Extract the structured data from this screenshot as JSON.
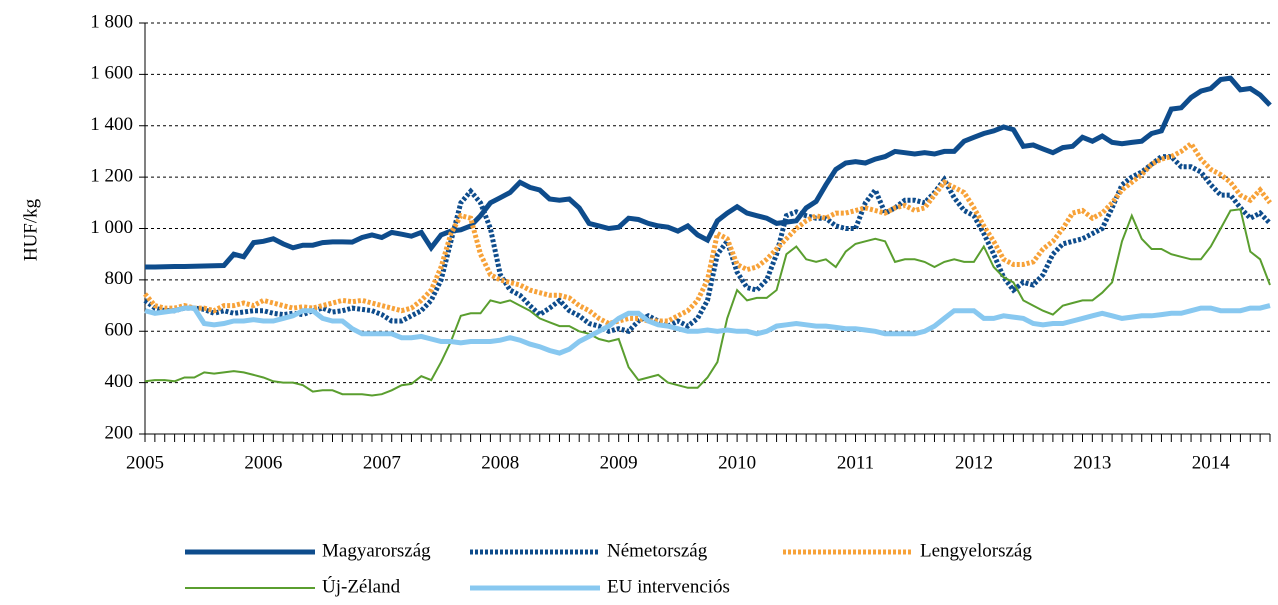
{
  "chart_data": {
    "type": "line",
    "y_label": "HUF/kg",
    "categories": [
      "2005",
      null,
      null,
      null,
      null,
      null,
      null,
      null,
      null,
      null,
      null,
      null,
      "2006",
      null,
      null,
      null,
      null,
      null,
      null,
      null,
      null,
      null,
      null,
      null,
      "2007",
      null,
      null,
      null,
      null,
      null,
      null,
      null,
      null,
      null,
      null,
      null,
      "2008",
      null,
      null,
      null,
      null,
      null,
      null,
      null,
      null,
      null,
      null,
      null,
      "2009",
      null,
      null,
      null,
      null,
      null,
      null,
      null,
      null,
      null,
      null,
      null,
      "2010",
      null,
      null,
      null,
      null,
      null,
      null,
      null,
      null,
      null,
      null,
      null,
      "2011",
      null,
      null,
      null,
      null,
      null,
      null,
      null,
      null,
      null,
      null,
      null,
      "2012",
      null,
      null,
      null,
      null,
      null,
      null,
      null,
      null,
      null,
      null,
      null,
      "2013",
      null,
      null,
      null,
      null,
      null,
      null,
      null,
      null,
      null,
      null,
      null,
      "2014",
      null,
      null,
      null,
      null,
      null,
      null
    ],
    "ylim": [
      200,
      1800
    ],
    "yticks": [
      200,
      400,
      600,
      800,
      {
        "value": 1000,
        "label": "1 000"
      },
      {
        "value": 1200,
        "label": "1 200"
      },
      {
        "value": 1400,
        "label": "1 400"
      },
      {
        "value": 1600,
        "label": "1 600"
      },
      {
        "value": 1800,
        "label": "1 800"
      }
    ],
    "grid": true,
    "legend": "bottom",
    "series": [
      {
        "name": "Magyarország",
        "color": "#0e4c8c",
        "style": "solid",
        "width": 5,
        "values": [
          850,
          850,
          851,
          852,
          852,
          853,
          854,
          855,
          856,
          900,
          890,
          945,
          950,
          960,
          940,
          925,
          935,
          935,
          945,
          948,
          948,
          947,
          965,
          975,
          965,
          985,
          978,
          970,
          985,
          925,
          975,
          990,
          995,
          1010,
          1050,
          1100,
          1120,
          1140,
          1180,
          1160,
          1150,
          1115,
          1110,
          1115,
          1080,
          1020,
          1010,
          1000,
          1005,
          1040,
          1035,
          1020,
          1010,
          1005,
          990,
          1010,
          975,
          955,
          1030,
          1060,
          1085,
          1060,
          1050,
          1040,
          1020,
          1025,
          1030,
          1080,
          1105,
          1170,
          1230,
          1255,
          1260,
          1255,
          1270,
          1280,
          1300,
          1295,
          1290,
          1295,
          1290,
          1300,
          1300,
          1340,
          1355,
          1370,
          1380,
          1395,
          1385,
          1320,
          1325,
          1310,
          1295,
          1315,
          1320,
          1355,
          1340,
          1360,
          1335,
          1330,
          1335,
          1340,
          1370,
          1380,
          1465,
          1470,
          1510,
          1535,
          1545,
          1580,
          1585,
          1540,
          1545,
          1520,
          1480
        ]
      },
      {
        "name": "Németország",
        "color": "#0e4c8c",
        "style": "dotted",
        "width": 5,
        "values": [
          720,
          690,
          680,
          680,
          690,
          690,
          685,
          670,
          680,
          670,
          675,
          680,
          680,
          670,
          665,
          670,
          665,
          680,
          690,
          675,
          680,
          690,
          685,
          680,
          665,
          640,
          640,
          660,
          680,
          720,
          800,
          950,
          1100,
          1145,
          1100,
          1000,
          820,
          760,
          740,
          700,
          665,
          690,
          720,
          680,
          660,
          630,
          620,
          600,
          610,
          600,
          640,
          660,
          640,
          620,
          640,
          620,
          650,
          720,
          900,
          950,
          830,
          770,
          760,
          800,
          900,
          1050,
          1065,
          1050,
          1040,
          1040,
          1010,
          1000,
          1000,
          1100,
          1150,
          1060,
          1080,
          1110,
          1110,
          1100,
          1140,
          1190,
          1120,
          1070,
          1050,
          980,
          900,
          810,
          760,
          790,
          780,
          820,
          900,
          940,
          950,
          960,
          980,
          1000,
          1080,
          1170,
          1200,
          1220,
          1250,
          1280,
          1280,
          1240,
          1240,
          1220,
          1170,
          1130,
          1130,
          1080,
          1040,
          1060,
          1020
        ]
      },
      {
        "name": "Lengyelország",
        "color": "#f7a239",
        "style": "dotted",
        "width": 5,
        "values": [
          745,
          700,
          690,
          690,
          700,
          690,
          690,
          680,
          700,
          700,
          710,
          700,
          720,
          710,
          700,
          690,
          695,
          690,
          700,
          710,
          720,
          715,
          720,
          710,
          700,
          690,
          680,
          690,
          720,
          760,
          850,
          980,
          1050,
          1040,
          900,
          820,
          800,
          790,
          780,
          760,
          750,
          740,
          740,
          730,
          700,
          680,
          650,
          630,
          640,
          650,
          650,
          640,
          640,
          640,
          660,
          680,
          720,
          800,
          980,
          960,
          860,
          840,
          850,
          880,
          920,
          960,
          1000,
          1030,
          1050,
          1040,
          1060,
          1060,
          1070,
          1080,
          1070,
          1060,
          1080,
          1090,
          1070,
          1080,
          1130,
          1180,
          1160,
          1140,
          1080,
          1010,
          950,
          880,
          860,
          860,
          870,
          920,
          950,
          1000,
          1060,
          1070,
          1040,
          1060,
          1100,
          1150,
          1180,
          1210,
          1250,
          1270,
          1280,
          1300,
          1330,
          1270,
          1230,
          1210,
          1180,
          1130,
          1110,
          1150,
          1100
        ]
      },
      {
        "name": "Új-Zéland",
        "color": "#5a9e2f",
        "style": "solid",
        "width": 2,
        "values": [
          405,
          410,
          410,
          405,
          420,
          420,
          440,
          435,
          440,
          445,
          440,
          430,
          420,
          405,
          400,
          400,
          390,
          365,
          370,
          370,
          355,
          355,
          355,
          350,
          355,
          370,
          390,
          395,
          425,
          410,
          480,
          560,
          660,
          670,
          670,
          720,
          710,
          720,
          700,
          680,
          650,
          635,
          620,
          620,
          600,
          590,
          570,
          560,
          570,
          460,
          410,
          420,
          430,
          400,
          390,
          380,
          380,
          420,
          480,
          650,
          760,
          720,
          730,
          730,
          760,
          900,
          930,
          880,
          870,
          880,
          850,
          910,
          940,
          950,
          960,
          950,
          870,
          880,
          880,
          870,
          850,
          870,
          880,
          870,
          870,
          930,
          850,
          810,
          790,
          720,
          700,
          680,
          665,
          700,
          710,
          720,
          720,
          750,
          790,
          950,
          1050,
          960,
          920,
          920,
          900,
          890,
          880,
          880,
          930,
          1000,
          1070,
          1075,
          910,
          880,
          780
        ]
      },
      {
        "name": "EU intervenciós",
        "color": "#88c8f0",
        "style": "solid",
        "width": 5,
        "values": [
          680,
          670,
          675,
          680,
          690,
          690,
          630,
          625,
          630,
          640,
          640,
          645,
          640,
          640,
          650,
          660,
          680,
          680,
          650,
          640,
          640,
          610,
          590,
          590,
          590,
          590,
          575,
          575,
          580,
          570,
          560,
          560,
          555,
          560,
          560,
          560,
          565,
          575,
          565,
          550,
          540,
          525,
          515,
          530,
          560,
          580,
          600,
          620,
          650,
          670,
          670,
          640,
          625,
          620,
          610,
          600,
          600,
          605,
          600,
          605,
          600,
          600,
          590,
          600,
          620,
          625,
          630,
          625,
          620,
          620,
          615,
          610,
          610,
          605,
          600,
          590,
          590,
          590,
          590,
          600,
          620,
          650,
          680,
          680,
          680,
          650,
          650,
          660,
          655,
          650,
          630,
          625,
          630,
          630,
          640,
          650,
          660,
          670,
          660,
          650,
          655,
          660,
          660,
          665,
          670,
          670,
          680,
          690,
          690,
          680,
          680,
          680,
          690,
          690,
          700
        ]
      }
    ]
  }
}
